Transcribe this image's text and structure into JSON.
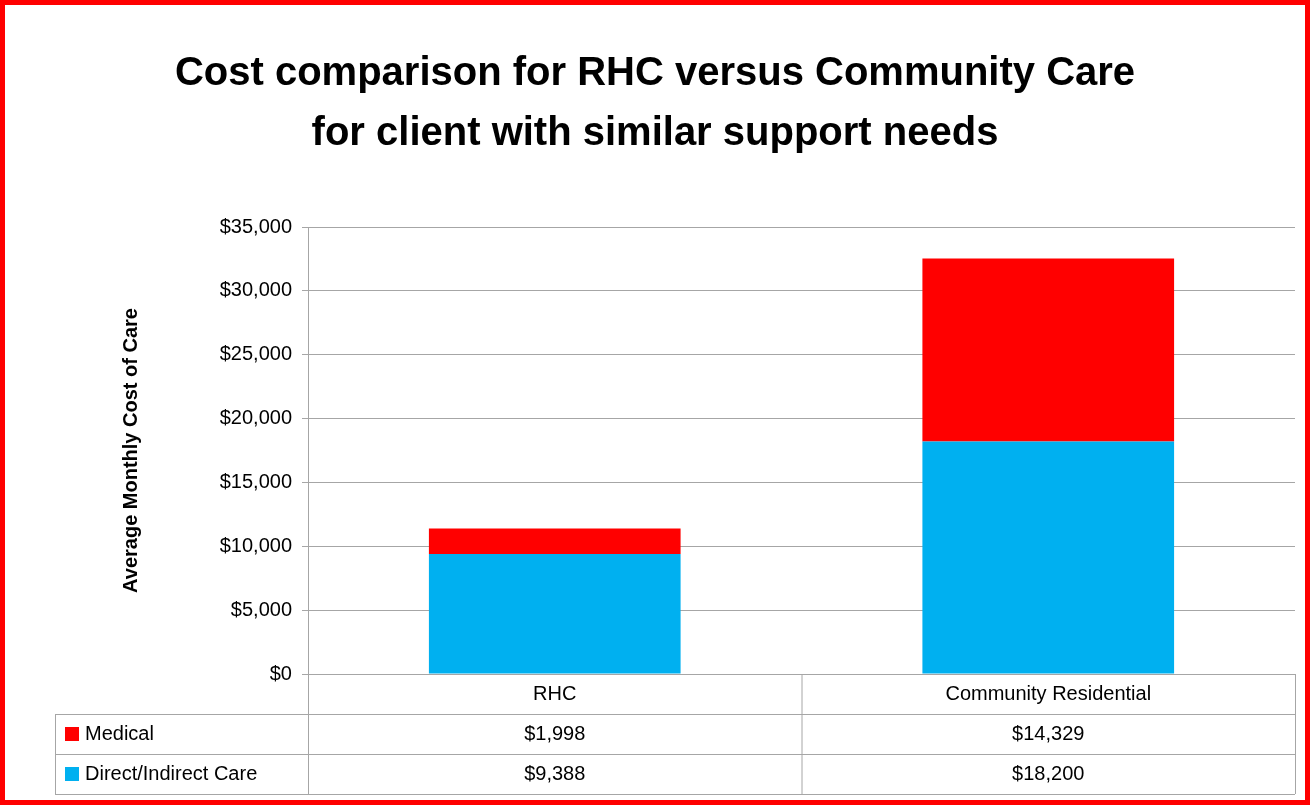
{
  "chart_data": {
    "type": "bar",
    "title": "Cost comparison for RHC versus Community Care for client with similar support needs",
    "ylabel": "Average Monthly Cost of Care",
    "categories": [
      "RHC",
      "Community Residential"
    ],
    "stacked": true,
    "series": [
      {
        "name": "Direct/Indirect Care",
        "color": "#00b0f0",
        "values": [
          9388,
          18200
        ],
        "value_labels": [
          "$9,388",
          "$18,200"
        ]
      },
      {
        "name": "Medical",
        "color": "#ff0000",
        "values": [
          1998,
          14329
        ],
        "value_labels": [
          "$1,998",
          "$14,329"
        ]
      }
    ],
    "ylim": [
      0,
      35000
    ],
    "yticks": [
      {
        "value": 0,
        "label": "$0"
      },
      {
        "value": 5000,
        "label": "$5,000"
      },
      {
        "value": 10000,
        "label": "$10,000"
      },
      {
        "value": 15000,
        "label": "$15,000"
      },
      {
        "value": 20000,
        "label": "$20,000"
      },
      {
        "value": 25000,
        "label": "$25,000"
      },
      {
        "value": 30000,
        "label": "$30,000"
      },
      {
        "value": 35000,
        "label": "$35,000"
      }
    ],
    "grid": "y",
    "legend": "bottom"
  }
}
